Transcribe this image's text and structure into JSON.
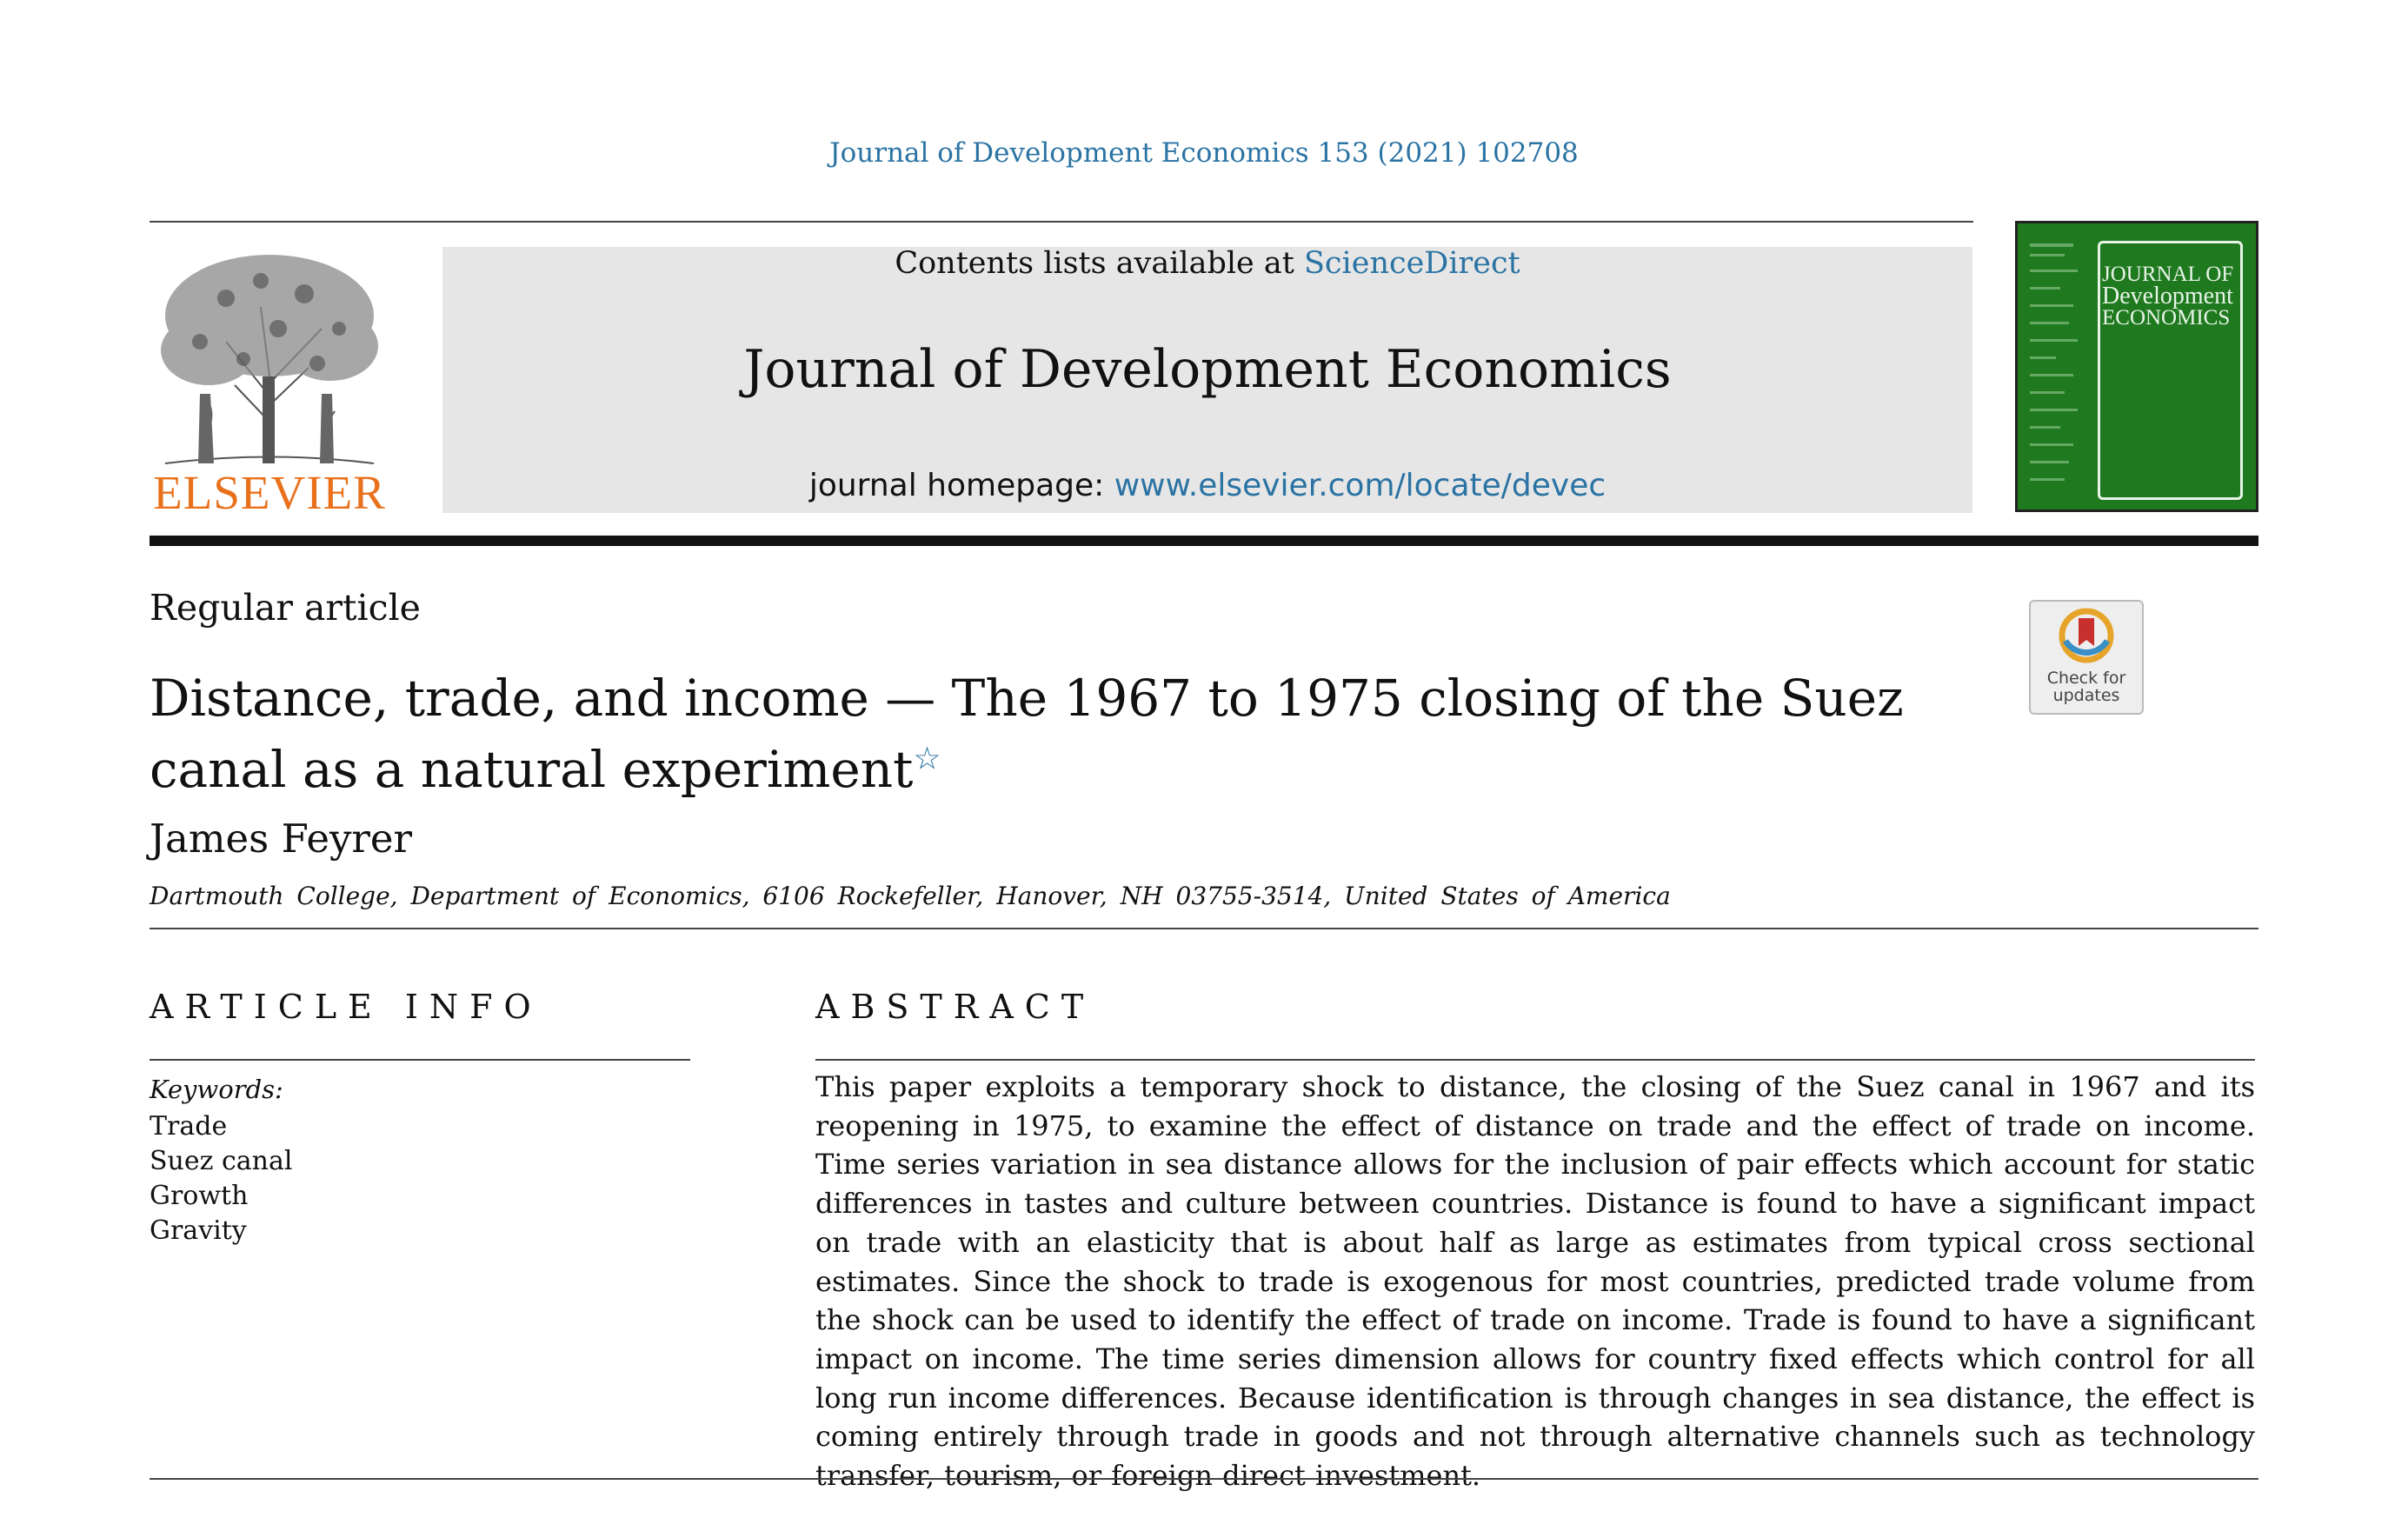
{
  "citation": "Journal of Development Economics 153 (2021) 102708",
  "header": {
    "contents_prefix": "Contents lists available at ",
    "contents_link": "ScienceDirect",
    "journal_title": "Journal of Development Economics",
    "homepage_prefix": "journal homepage: ",
    "homepage_link": "www.elsevier.com/locate/devec"
  },
  "publisher_logo": "ELSEVIER",
  "cover": {
    "line1": "JOURNAL OF",
    "line2": "Development",
    "line3": "ECONOMICS",
    "color": "#1f7a1f"
  },
  "check_for_updates": {
    "line1": "Check for",
    "line2": "updates"
  },
  "article": {
    "type": "Regular article",
    "title": "Distance, trade, and income — The 1967 to 1975 closing of the Suez canal as a natural experiment",
    "title_mark": "☆",
    "author": "James Feyrer",
    "affiliation": "Dartmouth College, Department of Economics, 6106 Rockefeller, Hanover, NH 03755-3514, United States of America"
  },
  "article_info": {
    "heading": "ARTICLE INFO",
    "keywords_label": "Keywords:",
    "keywords": [
      "Trade",
      "Suez canal",
      "Growth",
      "Gravity"
    ]
  },
  "abstract": {
    "heading": "ABSTRACT",
    "text": "This paper exploits a temporary shock to distance, the closing of the Suez canal in 1967 and its reopening in 1975, to examine the effect of distance on trade and the effect of trade on income. Time series variation in sea distance allows for the inclusion of pair effects which account for static differences in tastes and culture between countries. Distance is found to have a significant impact on trade with an elasticity that is about half as large as estimates from typical cross sectional estimates. Since the shock to trade is exogenous for most countries, predicted trade volume from the shock can be used to identify the effect of trade on income. Trade is found to have a significant impact on income. The time series dimension allows for country fixed effects which control for all long run income differences. Because identification is through changes in sea distance, the effect is coming entirely through trade in goods and not through alternative channels such as technology transfer, tourism, or foreign direct investment."
  },
  "colors": {
    "link": "#2a73a3",
    "elsevier_orange": "#e9711c",
    "header_grey": "#e6e6e6"
  }
}
